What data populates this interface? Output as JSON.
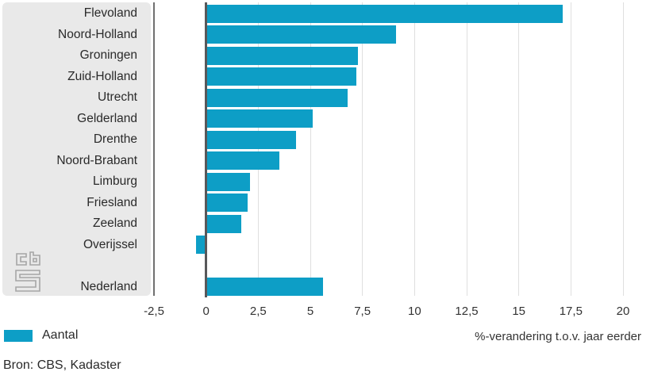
{
  "chart_data": {
    "type": "bar",
    "orientation": "horizontal",
    "title": "",
    "xlabel": "%-verandering t.o.v. jaar eerder",
    "ylabel": "",
    "xlim": [
      -2.5,
      20
    ],
    "grid": true,
    "legend_position": "bottom-left",
    "series": [
      {
        "name": "Aantal",
        "color": "#0d9ec6"
      }
    ],
    "categories": [
      "Flevoland",
      "Noord-Holland",
      "Groningen",
      "Zuid-Holland",
      "Utrecht",
      "Gelderland",
      "Drenthe",
      "Noord-Brabant",
      "Limburg",
      "Friesland",
      "Zeeland",
      "Overijssel",
      "Nederland"
    ],
    "values": [
      17.1,
      9.1,
      7.3,
      7.2,
      6.8,
      5.1,
      4.3,
      3.5,
      2.1,
      2.0,
      1.7,
      -0.5,
      5.6
    ],
    "gap_before_category": "Nederland",
    "xticks": [
      -2.5,
      0,
      2.5,
      5,
      7.5,
      10,
      12.5,
      15,
      17.5,
      20
    ],
    "xtick_labels": [
      "-2,5",
      "0",
      "2,5",
      "5",
      "7,5",
      "10",
      "12,5",
      "15",
      "17,5",
      "20"
    ]
  },
  "legend": {
    "label": "Aantal"
  },
  "source": {
    "text": "Bron: CBS, Kadaster"
  },
  "logo": {
    "name": "cbs-logo"
  },
  "colors": {
    "bar": "#0d9ec6",
    "panel": "#e9e9e9",
    "zero_line": "#58585a",
    "axis_line": "#707070",
    "gridline": "#dfdfdf",
    "text": "#303030",
    "logo": "#a6a6a6"
  }
}
